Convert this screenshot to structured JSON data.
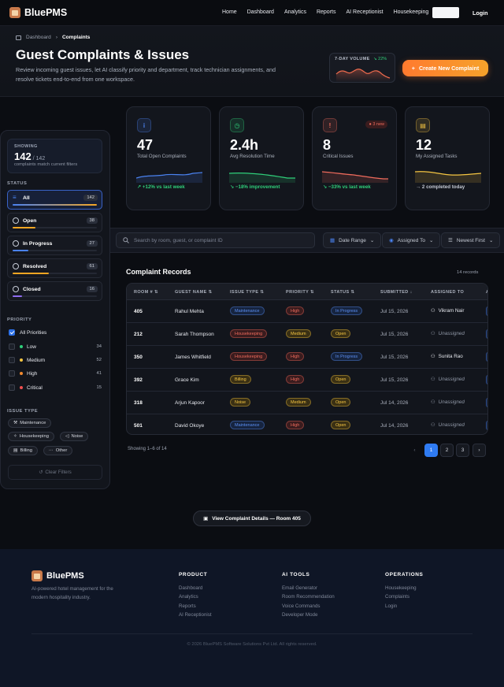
{
  "nav": {
    "brand": "BluePMS",
    "links": [
      "Home",
      "Dashboard",
      "Analytics",
      "Reports",
      "AI Receptionist",
      "Housekeeping"
    ],
    "login": "Login"
  },
  "header": {
    "breadcrumb_parent": "Dashboard",
    "breadcrumb_current": "Complaints",
    "title": "Guest Complaints & Issues",
    "subtitle": "Review incoming guest issues, let AI classify priority and department, track technician assignments, and resolve tickets end-to-end from one workspace.",
    "volume_label": "7-DAY VOLUME",
    "volume_change": "↘ 22%",
    "new_button": "Create New Complaint"
  },
  "sidebar": {
    "showing_label": "SHOWING",
    "showing_count": "142",
    "showing_total": " / 142",
    "showing_sub": "complaints match current filters",
    "status_heading": "STATUS",
    "statuses": [
      {
        "label": "All",
        "count": "142",
        "fill": 1.0,
        "color": "#4a82f0"
      },
      {
        "label": "Open",
        "count": "38",
        "fill": 0.27,
        "color": "#f5a623"
      },
      {
        "label": "In Progress",
        "count": "27",
        "fill": 0.19,
        "color": "#4a82f0"
      },
      {
        "label": "Resolved",
        "count": "61",
        "fill": 0.43,
        "color": "#f5a623"
      },
      {
        "label": "Closed",
        "count": "16",
        "fill": 0.11,
        "color": "#8f6cf0"
      }
    ],
    "priority_heading": "PRIORITY",
    "priorities": [
      {
        "label": "All Priorities",
        "count": "",
        "color": ""
      },
      {
        "label": "Low",
        "count": "34",
        "color": "#2fcf7a"
      },
      {
        "label": "Medium",
        "count": "52",
        "color": "#f5c542"
      },
      {
        "label": "High",
        "count": "41",
        "color": "#f28a2e"
      },
      {
        "label": "Critical",
        "count": "15",
        "color": "#ef4f4f"
      }
    ],
    "issue_heading": "ISSUE TYPE",
    "issue_types": [
      "Maintenance",
      "Housekeeping",
      "Noise",
      "Billing",
      "Other"
    ],
    "clear": "Clear Filters"
  },
  "stats": [
    {
      "value": "47",
      "label": "Total Open Complaints",
      "delta": "↗ +12% vs last week",
      "color": "#4a82f0",
      "delta_color": "#2fcf7a"
    },
    {
      "value": "2.4h",
      "label": "Avg Resolution Time",
      "delta": "↘ −18% improvement",
      "color": "#2fcf7a",
      "delta_color": "#2fcf7a"
    },
    {
      "value": "8",
      "label": "Critical Issues",
      "delta": "↘ −33% vs last week",
      "color": "#ef6b5c",
      "delta_color": "#2fcf7a",
      "badge": "3 new"
    },
    {
      "value": "12",
      "label": "My Assigned Tasks",
      "delta": "→ 2 completed today",
      "color": "#f5c542",
      "delta_color": "#c4c9d3"
    }
  ],
  "filters": {
    "search_placeholder": "Search by room, guest, or complaint ID",
    "date_range": "Date Range",
    "assigned_to": "Assigned To",
    "sort": "Newest First"
  },
  "records": {
    "title": "Complaint Records",
    "count": "14 records",
    "headers": [
      "ROOM #",
      "GUEST NAME",
      "ISSUE TYPE",
      "PRIORITY",
      "STATUS",
      "SUBMITTED",
      "ASSIGNED TO",
      "A"
    ],
    "rows": [
      {
        "room": "405",
        "guest": "Rahul Mehta",
        "issue": "Maintenance",
        "priority": "High",
        "status": "In Progress",
        "submitted": "Jul 15, 2026",
        "assigned": "Vikram Nair"
      },
      {
        "room": "212",
        "guest": "Sarah Thompson",
        "issue": "Housekeeping",
        "priority": "Medium",
        "status": "Open",
        "submitted": "Jul 15, 2026",
        "assigned": "Unassigned"
      },
      {
        "room": "350",
        "guest": "James Whitfield",
        "issue": "Housekeeping",
        "priority": "High",
        "status": "In Progress",
        "submitted": "Jul 15, 2026",
        "assigned": "Sunita Rao"
      },
      {
        "room": "392",
        "guest": "Grace Kim",
        "issue": "Billing",
        "priority": "High",
        "status": "Open",
        "submitted": "Jul 15, 2026",
        "assigned": "Unassigned"
      },
      {
        "room": "318",
        "guest": "Arjun Kapoor",
        "issue": "Noise",
        "priority": "Medium",
        "status": "Open",
        "submitted": "Jul 14, 2026",
        "assigned": "Unassigned"
      },
      {
        "room": "501",
        "guest": "David Okoye",
        "issue": "Maintenance",
        "priority": "High",
        "status": "Open",
        "submitted": "Jul 14, 2026",
        "assigned": "Unassigned"
      }
    ],
    "showing": "Showing 1–6 of 14",
    "pages": [
      "1",
      "2",
      "3"
    ]
  },
  "view_button": "View Complaint Details — Room 405",
  "footer": {
    "brand": "BluePMS",
    "desc": "AI-powered hotel management for the modern hospitality industry.",
    "columns": [
      {
        "heading": "PRODUCT",
        "links": [
          "Dashboard",
          "Analytics",
          "Reports",
          "AI Receptionist"
        ]
      },
      {
        "heading": "AI TOOLS",
        "links": [
          "Email Generator",
          "Room Recommendation",
          "Voice Commands",
          "Developer Mode"
        ]
      },
      {
        "heading": "OPERATIONS",
        "links": [
          "Housekeeping",
          "Complaints",
          "Login"
        ]
      }
    ],
    "copyright": "© 2026 BluePMS Software Solutions Pvt Ltd. All rights reserved."
  }
}
